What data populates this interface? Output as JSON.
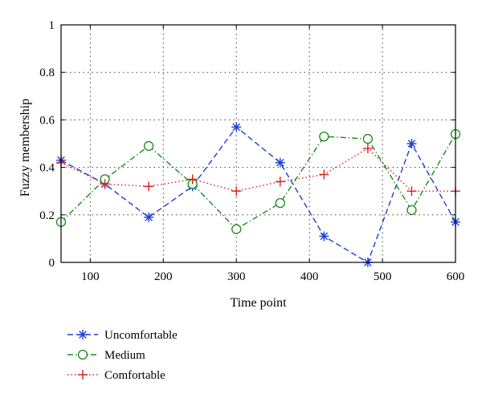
{
  "chart_data": {
    "type": "line",
    "xlabel": "Time point",
    "ylabel": "Fuzzy membership",
    "xlim": [
      60,
      600
    ],
    "ylim": [
      0,
      1
    ],
    "x_ticks": [
      100,
      200,
      300,
      400,
      500,
      600
    ],
    "y_ticks": [
      0,
      0.2,
      0.4,
      0.6,
      0.8,
      1
    ],
    "x_tick_labels": [
      "100",
      "200",
      "300",
      "400",
      "500",
      "600"
    ],
    "y_tick_labels": [
      "0",
      "0.2",
      "0.4",
      "0.6",
      "0.8",
      "1"
    ],
    "grid": true,
    "legend_position": "bottom-left (outside plot)",
    "x": [
      60,
      120,
      180,
      240,
      300,
      360,
      420,
      480,
      540,
      600
    ],
    "series": [
      {
        "name": "Uncomfortable",
        "color": "#1f3fd6",
        "dash": "dashed",
        "marker": "asterisk",
        "values": [
          0.43,
          0.33,
          0.19,
          0.32,
          0.57,
          0.42,
          0.11,
          0.0,
          0.5,
          0.17
        ]
      },
      {
        "name": "Medium",
        "color": "#1a8a1a",
        "dash": "dash-dot",
        "marker": "circle",
        "values": [
          0.17,
          0.35,
          0.49,
          0.33,
          0.14,
          0.25,
          0.53,
          0.52,
          0.22,
          0.54
        ]
      },
      {
        "name": "Comfortable",
        "color": "#d62020",
        "dash": "dotted",
        "marker": "plus",
        "values": [
          0.42,
          0.33,
          0.32,
          0.35,
          0.3,
          0.34,
          0.37,
          0.48,
          0.3,
          0.3
        ]
      }
    ]
  }
}
